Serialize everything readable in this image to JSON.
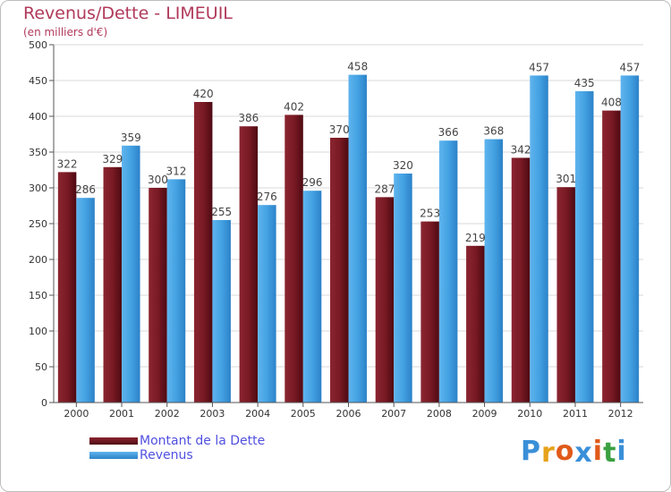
{
  "title": "Revenus/Dette - LIMEUIL",
  "subtitle": "(en milliers d'€)",
  "colors": {
    "dette": "#7a1a24",
    "revenus": "#3f9ee0",
    "title": "#b03a5a",
    "legend_text": "#5050e0",
    "grid": "#d8d8d8"
  },
  "chart_data": {
    "type": "bar",
    "title": "Revenus/Dette - LIMEUIL",
    "ylabel": "(en milliers d'€)",
    "xlabel": "",
    "categories": [
      "2000",
      "2001",
      "2002",
      "2003",
      "2004",
      "2005",
      "2006",
      "2007",
      "2008",
      "2009",
      "2010",
      "2011",
      "2012"
    ],
    "series": [
      {
        "name": "Montant de la Dette",
        "values": [
          322,
          329,
          300,
          420,
          386,
          402,
          370,
          287,
          253,
          219,
          342,
          301,
          408
        ]
      },
      {
        "name": "Revenus",
        "values": [
          286,
          359,
          312,
          255,
          276,
          296,
          458,
          320,
          366,
          368,
          457,
          435,
          457
        ]
      }
    ],
    "ylim": [
      0,
      500
    ],
    "yticks": [
      0,
      50,
      100,
      150,
      200,
      250,
      300,
      350,
      400,
      450,
      500
    ],
    "grid": true,
    "legend_position": "bottom-left"
  },
  "legend": [
    {
      "label": "Montant de la Dette"
    },
    {
      "label": "Revenus"
    }
  ],
  "logo": {
    "letters": [
      "P",
      "r",
      "o",
      "x",
      "i",
      "t",
      "i"
    ],
    "colors": [
      "#3a8fd8",
      "#e6a21a",
      "#e05a1a",
      "#3a8fd8",
      "#e05a1a",
      "#3aa040",
      "#3a8fd8"
    ]
  }
}
